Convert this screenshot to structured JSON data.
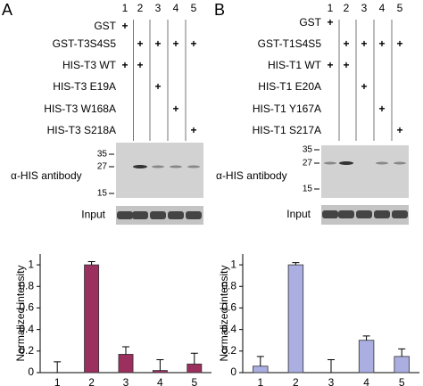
{
  "panels": [
    {
      "letter": "A",
      "lanes": [
        "1",
        "2",
        "3",
        "4",
        "5"
      ],
      "rows": [
        {
          "label": "GST",
          "cells": [
            "+",
            null,
            null,
            null,
            null
          ]
        },
        {
          "label": "GST-T3S4S5",
          "cells": [
            null,
            "+",
            "+",
            "+",
            "+"
          ]
        },
        {
          "label": "HIS-T3 WT",
          "cells": [
            "+",
            "+",
            null,
            null,
            null
          ]
        },
        {
          "label": "HIS-T3 E19A",
          "cells": [
            null,
            null,
            "+",
            null,
            null
          ]
        },
        {
          "label": "HIS-T3 W168A",
          "cells": [
            null,
            null,
            null,
            "+",
            null
          ]
        },
        {
          "label": "HIS-T3 S218A",
          "cells": [
            null,
            null,
            null,
            null,
            "+"
          ]
        }
      ],
      "blot_label": "α-HIS antibody",
      "markers": [
        "35",
        "27",
        "15"
      ],
      "input_label": "Input"
    },
    {
      "letter": "B",
      "lanes": [
        "1",
        "2",
        "3",
        "4",
        "5"
      ],
      "rows": [
        {
          "label": "GST",
          "cells": [
            "+",
            null,
            null,
            null,
            null
          ]
        },
        {
          "label": "GST-T1S4S5",
          "cells": [
            null,
            "+",
            "+",
            "+",
            "+"
          ]
        },
        {
          "label": "HIS-T1 WT",
          "cells": [
            "+",
            "+",
            null,
            null,
            null
          ]
        },
        {
          "label": "HIS-T1 E20A",
          "cells": [
            null,
            null,
            "+",
            null,
            null
          ]
        },
        {
          "label": "HIS-T1 Y167A",
          "cells": [
            null,
            null,
            null,
            "+",
            null
          ]
        },
        {
          "label": "HIS-T1 S217A",
          "cells": [
            null,
            null,
            null,
            null,
            "+"
          ]
        }
      ],
      "blot_label": "α-HIS antibody",
      "markers": [
        "35",
        "27",
        "15"
      ],
      "input_label": "Input"
    }
  ],
  "chart_data": [
    {
      "type": "bar",
      "ylabel": "Normalized intensity",
      "categories": [
        "1",
        "2",
        "3",
        "4",
        "5"
      ],
      "values": [
        0,
        1,
        0.17,
        0.02,
        0.08
      ],
      "errors": [
        0.1,
        0.03,
        0.07,
        0.1,
        0.1
      ],
      "color": "#9b2f5e",
      "ylim": [
        0,
        1.1
      ],
      "yticks": [
        0,
        0.2,
        0.4,
        0.6,
        0.8,
        1
      ]
    },
    {
      "type": "bar",
      "ylabel": "Normalized intensity",
      "categories": [
        "1",
        "2",
        "3",
        "4",
        "5"
      ],
      "values": [
        0.06,
        1,
        0,
        0.3,
        0.15
      ],
      "errors": [
        0.09,
        0.02,
        0.12,
        0.04,
        0.07
      ],
      "color": "#aaaee0",
      "ylim": [
        0,
        1.1
      ],
      "yticks": [
        0,
        0.2,
        0.4,
        0.6,
        0.8,
        1
      ]
    }
  ]
}
